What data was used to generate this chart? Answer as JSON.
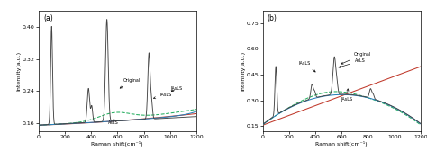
{
  "panel_a": {
    "label": "(a)",
    "xlim": [
      0,
      1200
    ],
    "ylim": [
      0.14,
      0.44
    ],
    "yticks": [
      0.16,
      0.24,
      0.32,
      0.4
    ],
    "xticks": [
      0,
      200,
      400,
      600,
      800,
      1000,
      1200
    ],
    "xlabel": "Raman shift(cm⁻¹)",
    "ylabel": "Intensity(a.u.)"
  },
  "panel_b": {
    "label": "(b)",
    "xlim": [
      0,
      1200
    ],
    "ylim": [
      0.12,
      0.82
    ],
    "yticks": [
      0.15,
      0.3,
      0.45,
      0.6,
      0.75
    ],
    "xticks": [
      0,
      200,
      400,
      600,
      800,
      1000,
      1200
    ],
    "xlabel": "Raman shift(cm⁻¹)",
    "ylabel": "Intensity(a.u.)"
  },
  "colors": {
    "original": "#444444",
    "AsLS": "#c0392b",
    "IAsLS": "#27ae60",
    "JAsLS": "#2980b9"
  },
  "peak_a": {
    "positions": [
      100,
      380,
      405,
      520,
      840,
      860
    ],
    "heights": [
      0.245,
      0.085,
      0.04,
      0.255,
      0.165,
      0.04
    ],
    "widths": [
      7,
      9,
      7,
      10,
      9,
      7
    ]
  },
  "peak_b": {
    "positions": [
      100,
      375,
      395,
      545,
      565,
      820,
      840
    ],
    "heights": [
      0.285,
      0.085,
      0.035,
      0.22,
      0.05,
      0.055,
      0.025
    ],
    "widths": [
      7,
      9,
      7,
      11,
      7,
      9,
      7
    ]
  }
}
